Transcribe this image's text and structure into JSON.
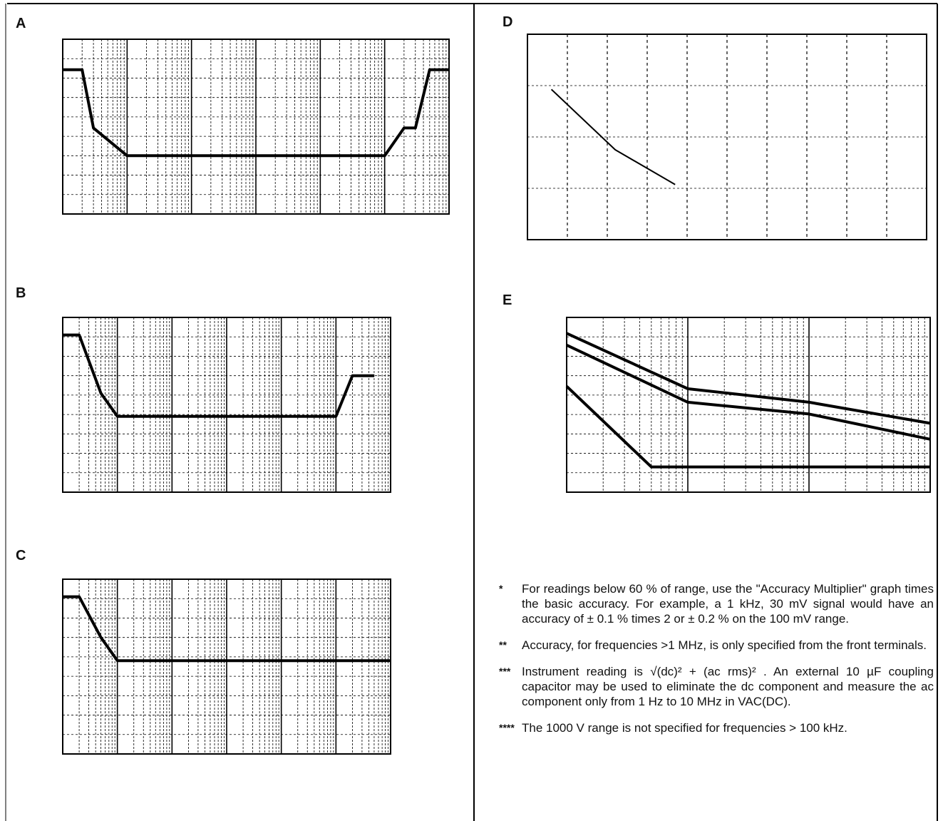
{
  "panels": [
    {
      "letter": "A"
    },
    {
      "letter": "B"
    },
    {
      "letter": "C"
    },
    {
      "letter": "D"
    },
    {
      "letter": "E"
    }
  ],
  "chart_data": [
    {
      "type": "line",
      "panel": "A",
      "xscale": "log",
      "xlim": [
        1,
        1000000
      ],
      "ylim_order": [
        0.001,
        1
      ],
      "series": [
        {
          "x": [
            1,
            2,
            3,
            10,
            20,
            50,
            100,
            1000,
            10000,
            100000,
            200000,
            300000,
            500000,
            1000000
          ],
          "y": [
            0.3,
            0.3,
            0.03,
            0.01,
            0.01,
            0.01,
            0.01,
            0.01,
            0.01,
            0.01,
            0.03,
            0.03,
            0.3,
            0.3
          ]
        }
      ]
    },
    {
      "type": "line",
      "panel": "B",
      "xscale": "log",
      "xlim": [
        1,
        1000000
      ],
      "series": [
        {
          "x": [
            1,
            2,
            5,
            10,
            100,
            1000,
            10000,
            100000,
            200000,
            500000
          ],
          "y": [
            0.5,
            0.5,
            0.05,
            0.02,
            0.02,
            0.02,
            0.02,
            0.02,
            0.1,
            0.1
          ]
        }
      ]
    },
    {
      "type": "line",
      "panel": "C",
      "xscale": "log",
      "xlim": [
        1,
        1000000
      ],
      "series": [
        {
          "x": [
            1,
            2,
            5,
            10,
            100,
            1000,
            10000,
            100000,
            1000000
          ],
          "y": [
            0.5,
            0.5,
            0.1,
            0.04,
            0.04,
            0.04,
            0.04,
            0.04,
            0.04
          ]
        }
      ]
    },
    {
      "type": "line",
      "panel": "D",
      "xscale": "linear",
      "xlim": [
        0,
        100
      ],
      "series": [
        {
          "x": [
            6,
            22,
            37
          ],
          "y": [
            10,
            3,
            1.5
          ]
        }
      ]
    },
    {
      "type": "line",
      "panel": "E",
      "xscale": "log",
      "xlim": [
        1,
        1000
      ],
      "series": [
        {
          "x": [
            1,
            10,
            100,
            1000
          ],
          "y": [
            1.0,
            0.09,
            0.05,
            0.02
          ]
        },
        {
          "x": [
            1,
            10,
            100,
            1000
          ],
          "y": [
            0.6,
            0.05,
            0.03,
            0.01
          ]
        },
        {
          "x": [
            1,
            5,
            10,
            100,
            1000
          ],
          "y": [
            0.1,
            0.003,
            0.003,
            0.003,
            0.003
          ]
        }
      ]
    }
  ],
  "notes": {
    "n1_mark": "*",
    "n1": "For readings below 60 % of range, use the \"Accuracy Multiplier\" graph times the basic accuracy. For example, a 1 kHz, 30 mV signal would have an accuracy of ± 0.1 % times 2 or ± 0.2 % on the 100 mV range.",
    "n2_mark": "**",
    "n2": "Accuracy, for frequencies >1 MHz, is only specified from the front terminals.",
    "n3_mark": "***",
    "n3a": "Instrument reading is",
    "n3b": "√(dc)² + (ac rms)²",
    "n3c": ". An external 10 µF coupling capacitor may be used to eliminate the dc component and measure the ac component only from 1 Hz to 10 MHz in VAC(DC).",
    "n4_mark": "****",
    "n4": "The 1000 V range is not specified for frequencies > 100 kHz."
  }
}
